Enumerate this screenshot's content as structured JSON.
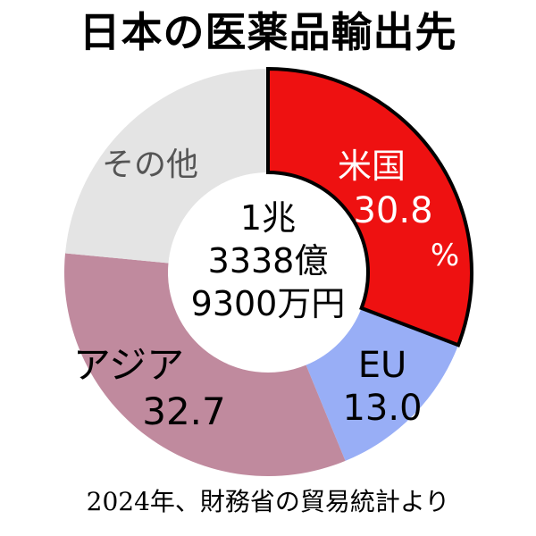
{
  "title": "日本の医薬品輸出先",
  "source": "2024年、財務省の貿易統計より",
  "center_text": [
    "1兆",
    "3338億",
    "9300万円"
  ],
  "chart_data": {
    "type": "pie",
    "title": "日本の医薬品輸出先",
    "total": "1兆3338億9300万円",
    "unit": "%",
    "categories": [
      "米国",
      "EU",
      "アジア",
      "その他"
    ],
    "values": [
      30.8,
      13.0,
      32.7,
      23.5
    ],
    "labels": [
      {
        "name": "米国",
        "value": "30.8",
        "unit": "%"
      },
      {
        "name": "EU",
        "value": "13.0"
      },
      {
        "name": "アジア",
        "value": "32.7"
      },
      {
        "name": "その他"
      }
    ],
    "colors": [
      "#ee1111",
      "#98aef6",
      "#c08a9e",
      "#e4e4e4"
    ],
    "label_colors": [
      "#ffffff",
      "#000000",
      "#000000",
      "#555555"
    ]
  }
}
